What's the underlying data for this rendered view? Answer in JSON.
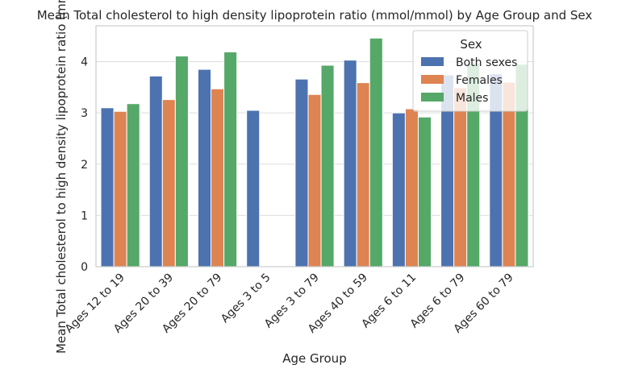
{
  "chart_data": {
    "type": "bar",
    "title": "Mean Total cholesterol to high density lipoprotein ratio (mmol/mmol) by Age Group and Sex",
    "xlabel": "Age Group",
    "ylabel": "Mean Total cholesterol to high density lipoprotein ratio (mmol/mmol)",
    "ylim": [
      0,
      4.7
    ],
    "yticks": [
      "0",
      "1",
      "2",
      "3",
      "4"
    ],
    "grid": true,
    "legend_placement": "top-right",
    "legend_title": "Sex",
    "categories": [
      "Ages 12 to 19",
      "Ages 20 to 39",
      "Ages 20 to 79",
      "Ages 3 to 5",
      "Ages 3 to 79",
      "Ages 40 to 59",
      "Ages 6 to 11",
      "Ages 6 to 79",
      "Ages 60 to 79"
    ],
    "series": [
      {
        "name": "Both sexes",
        "color": "#4c72b0",
        "values": [
          3.1,
          3.72,
          3.85,
          3.05,
          3.66,
          4.03,
          3.0,
          3.74,
          3.76
        ]
      },
      {
        "name": "Females",
        "color": "#dd8452",
        "values": [
          3.03,
          3.26,
          3.47,
          null,
          3.36,
          3.59,
          3.08,
          3.49,
          3.6
        ]
      },
      {
        "name": "Males",
        "color": "#55a868",
        "values": [
          3.18,
          4.11,
          4.19,
          null,
          3.93,
          4.46,
          2.92,
          3.97,
          3.95
        ]
      }
    ]
  }
}
